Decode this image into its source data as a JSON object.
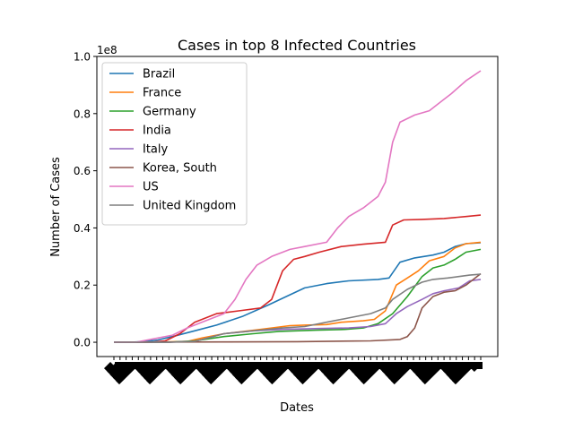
{
  "chart_data": {
    "type": "line",
    "title": "Cases in top 8 Infected Countries",
    "xlabel": "Dates",
    "ylabel": "Number of Cases",
    "y_multiplier_label": "1e8",
    "ylim": [
      -0.05,
      1.0
    ],
    "yticks": [
      "0.0",
      "0.2",
      "0.4",
      "0.6",
      "0.8",
      "1.0"
    ],
    "x_points": 61,
    "x_tick_labels_legible": false,
    "grid": false,
    "legend_position": "upper-left",
    "series": [
      {
        "name": "Brazil",
        "color": "#1f77b4",
        "points": [
          [
            0,
            0
          ],
          [
            0.04,
            0
          ],
          [
            0.08,
            0.002
          ],
          [
            0.12,
            0.008
          ],
          [
            0.16,
            0.02
          ],
          [
            0.22,
            0.04
          ],
          [
            0.28,
            0.06
          ],
          [
            0.35,
            0.09
          ],
          [
            0.42,
            0.13
          ],
          [
            0.47,
            0.16
          ],
          [
            0.52,
            0.19
          ],
          [
            0.58,
            0.205
          ],
          [
            0.64,
            0.215
          ],
          [
            0.72,
            0.22
          ],
          [
            0.75,
            0.225
          ],
          [
            0.78,
            0.28
          ],
          [
            0.82,
            0.295
          ],
          [
            0.87,
            0.305
          ],
          [
            0.9,
            0.315
          ],
          [
            0.93,
            0.335
          ],
          [
            0.96,
            0.345
          ],
          [
            1,
            0.348
          ]
        ]
      },
      {
        "name": "France",
        "color": "#ff7f0e",
        "points": [
          [
            0,
            0
          ],
          [
            0.1,
            0
          ],
          [
            0.2,
            0.003
          ],
          [
            0.24,
            0.015
          ],
          [
            0.3,
            0.03
          ],
          [
            0.4,
            0.045
          ],
          [
            0.48,
            0.058
          ],
          [
            0.52,
            0.06
          ],
          [
            0.58,
            0.062
          ],
          [
            0.62,
            0.07
          ],
          [
            0.68,
            0.075
          ],
          [
            0.71,
            0.08
          ],
          [
            0.74,
            0.11
          ],
          [
            0.77,
            0.2
          ],
          [
            0.8,
            0.225
          ],
          [
            0.83,
            0.25
          ],
          [
            0.86,
            0.285
          ],
          [
            0.9,
            0.3
          ],
          [
            0.93,
            0.33
          ],
          [
            0.96,
            0.345
          ],
          [
            1,
            0.35
          ]
        ]
      },
      {
        "name": "Germany",
        "color": "#2ca02c",
        "points": [
          [
            0,
            0
          ],
          [
            0.15,
            0
          ],
          [
            0.22,
            0.005
          ],
          [
            0.3,
            0.02
          ],
          [
            0.38,
            0.03
          ],
          [
            0.45,
            0.038
          ],
          [
            0.55,
            0.042
          ],
          [
            0.63,
            0.045
          ],
          [
            0.68,
            0.05
          ],
          [
            0.72,
            0.065
          ],
          [
            0.76,
            0.1
          ],
          [
            0.8,
            0.16
          ],
          [
            0.84,
            0.23
          ],
          [
            0.87,
            0.26
          ],
          [
            0.9,
            0.27
          ],
          [
            0.93,
            0.29
          ],
          [
            0.96,
            0.315
          ],
          [
            1,
            0.325
          ]
        ]
      },
      {
        "name": "India",
        "color": "#d62728",
        "points": [
          [
            0,
            0
          ],
          [
            0.1,
            0
          ],
          [
            0.14,
            0.005
          ],
          [
            0.18,
            0.03
          ],
          [
            0.22,
            0.07
          ],
          [
            0.28,
            0.1
          ],
          [
            0.34,
            0.11
          ],
          [
            0.4,
            0.12
          ],
          [
            0.43,
            0.15
          ],
          [
            0.46,
            0.25
          ],
          [
            0.49,
            0.29
          ],
          [
            0.52,
            0.3
          ],
          [
            0.56,
            0.315
          ],
          [
            0.62,
            0.335
          ],
          [
            0.68,
            0.343
          ],
          [
            0.74,
            0.35
          ],
          [
            0.76,
            0.41
          ],
          [
            0.79,
            0.428
          ],
          [
            0.84,
            0.43
          ],
          [
            0.9,
            0.433
          ],
          [
            0.96,
            0.44
          ],
          [
            1,
            0.445
          ]
        ]
      },
      {
        "name": "Italy",
        "color": "#9467bd",
        "points": [
          [
            0,
            0
          ],
          [
            0.15,
            0
          ],
          [
            0.22,
            0.003
          ],
          [
            0.3,
            0.03
          ],
          [
            0.38,
            0.04
          ],
          [
            0.46,
            0.045
          ],
          [
            0.56,
            0.048
          ],
          [
            0.64,
            0.05
          ],
          [
            0.7,
            0.055
          ],
          [
            0.74,
            0.065
          ],
          [
            0.77,
            0.1
          ],
          [
            0.8,
            0.125
          ],
          [
            0.84,
            0.15
          ],
          [
            0.87,
            0.17
          ],
          [
            0.9,
            0.18
          ],
          [
            0.94,
            0.19
          ],
          [
            0.97,
            0.215
          ],
          [
            1,
            0.22
          ]
        ]
      },
      {
        "name": "Korea, South",
        "color": "#8c564b",
        "points": [
          [
            0,
            0
          ],
          [
            0.3,
            0.001
          ],
          [
            0.5,
            0.002
          ],
          [
            0.7,
            0.005
          ],
          [
            0.78,
            0.01
          ],
          [
            0.8,
            0.02
          ],
          [
            0.82,
            0.05
          ],
          [
            0.84,
            0.12
          ],
          [
            0.87,
            0.16
          ],
          [
            0.9,
            0.175
          ],
          [
            0.93,
            0.18
          ],
          [
            0.96,
            0.2
          ],
          [
            1,
            0.24
          ]
        ]
      },
      {
        "name": "US",
        "color": "#e377c2",
        "points": [
          [
            0,
            0
          ],
          [
            0.06,
            0
          ],
          [
            0.12,
            0.015
          ],
          [
            0.16,
            0.025
          ],
          [
            0.2,
            0.05
          ],
          [
            0.26,
            0.08
          ],
          [
            0.3,
            0.1
          ],
          [
            0.33,
            0.15
          ],
          [
            0.36,
            0.22
          ],
          [
            0.39,
            0.27
          ],
          [
            0.43,
            0.3
          ],
          [
            0.48,
            0.325
          ],
          [
            0.52,
            0.335
          ],
          [
            0.58,
            0.35
          ],
          [
            0.61,
            0.4
          ],
          [
            0.64,
            0.44
          ],
          [
            0.68,
            0.47
          ],
          [
            0.72,
            0.51
          ],
          [
            0.74,
            0.56
          ],
          [
            0.76,
            0.7
          ],
          [
            0.78,
            0.77
          ],
          [
            0.82,
            0.795
          ],
          [
            0.86,
            0.81
          ],
          [
            0.89,
            0.84
          ],
          [
            0.92,
            0.87
          ],
          [
            0.96,
            0.915
          ],
          [
            1,
            0.95
          ]
        ]
      },
      {
        "name": "United Kingdom",
        "color": "#7f7f7f",
        "points": [
          [
            0,
            0
          ],
          [
            0.15,
            0
          ],
          [
            0.22,
            0.003
          ],
          [
            0.3,
            0.03
          ],
          [
            0.38,
            0.04
          ],
          [
            0.46,
            0.05
          ],
          [
            0.52,
            0.055
          ],
          [
            0.58,
            0.07
          ],
          [
            0.64,
            0.085
          ],
          [
            0.7,
            0.1
          ],
          [
            0.74,
            0.12
          ],
          [
            0.76,
            0.15
          ],
          [
            0.8,
            0.185
          ],
          [
            0.84,
            0.21
          ],
          [
            0.87,
            0.22
          ],
          [
            0.91,
            0.225
          ],
          [
            0.94,
            0.23
          ],
          [
            0.97,
            0.235
          ],
          [
            1,
            0.238
          ]
        ]
      }
    ]
  }
}
